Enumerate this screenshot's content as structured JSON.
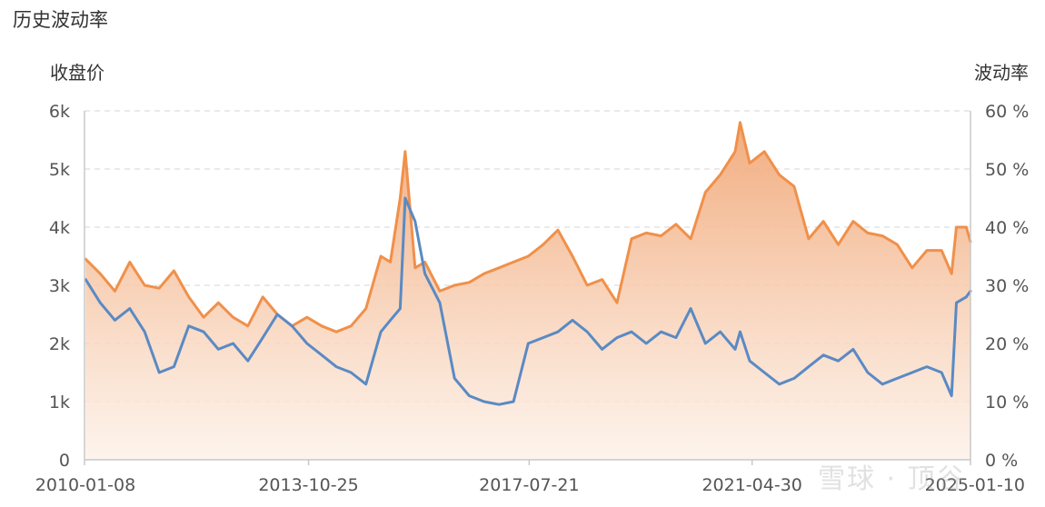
{
  "page_title": "历史波动率",
  "watermark": "雪球 · 顶谷",
  "colors": {
    "price": "#f0904a",
    "price_fill_top": "#f1a878",
    "price_fill_bottom": "#fdf1e8",
    "volatility": "#5a8ac3",
    "grid": "#e3e3e3",
    "axis": "#c8c8c8"
  },
  "chart_data": {
    "type": "line",
    "title": "历史波动率",
    "y_left_label": "收盘价",
    "y_right_label": "波动率",
    "ylim_left": [
      0,
      6000
    ],
    "ylim_right": [
      0,
      60
    ],
    "y_left_ticks": [
      "0",
      "1k",
      "2k",
      "3k",
      "4k",
      "5k",
      "6k"
    ],
    "y_right_ticks": [
      "0 %",
      "10 %",
      "20 %",
      "30 %",
      "40 %",
      "50 %",
      "60 %"
    ],
    "x_ticks": [
      "2010-01-08",
      "2013-10-25",
      "2017-07-21",
      "2021-04-30",
      "2025-01-10"
    ],
    "x_range": [
      "2010-01-08",
      "2025-01-10"
    ],
    "grid": true,
    "series": [
      {
        "name": "收盘价",
        "axis": "left",
        "style": "area",
        "x": [
          "2010-01",
          "2010-04",
          "2010-07",
          "2010-10",
          "2011-01",
          "2011-04",
          "2011-07",
          "2011-10",
          "2012-01",
          "2012-04",
          "2012-07",
          "2012-10",
          "2013-01",
          "2013-04",
          "2013-07",
          "2013-10",
          "2014-01",
          "2014-04",
          "2014-07",
          "2014-10",
          "2015-01",
          "2015-03",
          "2015-05",
          "2015-06",
          "2015-08",
          "2015-10",
          "2016-01",
          "2016-04",
          "2016-07",
          "2016-10",
          "2017-01",
          "2017-04",
          "2017-07",
          "2017-10",
          "2018-01",
          "2018-04",
          "2018-07",
          "2018-10",
          "2019-01",
          "2019-04",
          "2019-07",
          "2019-10",
          "2020-01",
          "2020-04",
          "2020-07",
          "2020-10",
          "2021-01",
          "2021-02",
          "2021-04",
          "2021-07",
          "2021-10",
          "2022-01",
          "2022-04",
          "2022-07",
          "2022-10",
          "2023-01",
          "2023-04",
          "2023-07",
          "2023-10",
          "2024-01",
          "2024-04",
          "2024-07",
          "2024-09",
          "2024-10",
          "2024-12",
          "2025-01"
        ],
        "values": [
          3450,
          3200,
          2900,
          3400,
          3000,
          2950,
          3250,
          2800,
          2450,
          2700,
          2450,
          2300,
          2800,
          2500,
          2300,
          2450,
          2300,
          2200,
          2300,
          2600,
          3500,
          3400,
          4500,
          5300,
          3300,
          3400,
          2900,
          3000,
          3050,
          3200,
          3300,
          3400,
          3500,
          3700,
          3950,
          3500,
          3000,
          3100,
          2700,
          3800,
          3900,
          3850,
          4050,
          3800,
          4600,
          4900,
          5300,
          5800,
          5100,
          5300,
          4900,
          4700,
          3800,
          4100,
          3700,
          4100,
          3900,
          3850,
          3700,
          3300,
          3600,
          3600,
          3200,
          4000,
          4000,
          3750
        ]
      },
      {
        "name": "波动率",
        "axis": "right",
        "style": "line",
        "x": [
          "2010-01",
          "2010-04",
          "2010-07",
          "2010-10",
          "2011-01",
          "2011-04",
          "2011-07",
          "2011-10",
          "2012-01",
          "2012-04",
          "2012-07",
          "2012-10",
          "2013-01",
          "2013-04",
          "2013-07",
          "2013-10",
          "2014-01",
          "2014-04",
          "2014-07",
          "2014-10",
          "2015-01",
          "2015-03",
          "2015-05",
          "2015-06",
          "2015-08",
          "2015-10",
          "2016-01",
          "2016-04",
          "2016-07",
          "2016-10",
          "2017-01",
          "2017-04",
          "2017-07",
          "2017-10",
          "2018-01",
          "2018-04",
          "2018-07",
          "2018-10",
          "2019-01",
          "2019-04",
          "2019-07",
          "2019-10",
          "2020-01",
          "2020-04",
          "2020-07",
          "2020-10",
          "2021-01",
          "2021-02",
          "2021-04",
          "2021-07",
          "2021-10",
          "2022-01",
          "2022-04",
          "2022-07",
          "2022-10",
          "2023-01",
          "2023-04",
          "2023-07",
          "2023-10",
          "2024-01",
          "2024-04",
          "2024-07",
          "2024-09",
          "2024-10",
          "2024-12",
          "2025-01"
        ],
        "values": [
          31,
          27,
          24,
          26,
          22,
          15,
          16,
          23,
          22,
          19,
          20,
          17,
          21,
          25,
          23,
          20,
          18,
          16,
          15,
          13,
          22,
          24,
          26,
          45,
          41,
          32,
          27,
          14,
          11,
          10,
          9.5,
          10,
          20,
          21,
          22,
          24,
          22,
          19,
          21,
          22,
          20,
          22,
          21,
          26,
          20,
          22,
          19,
          22,
          17,
          15,
          13,
          14,
          16,
          18,
          17,
          19,
          15,
          13,
          14,
          15,
          16,
          15,
          11,
          27,
          28,
          29
        ]
      }
    ]
  }
}
